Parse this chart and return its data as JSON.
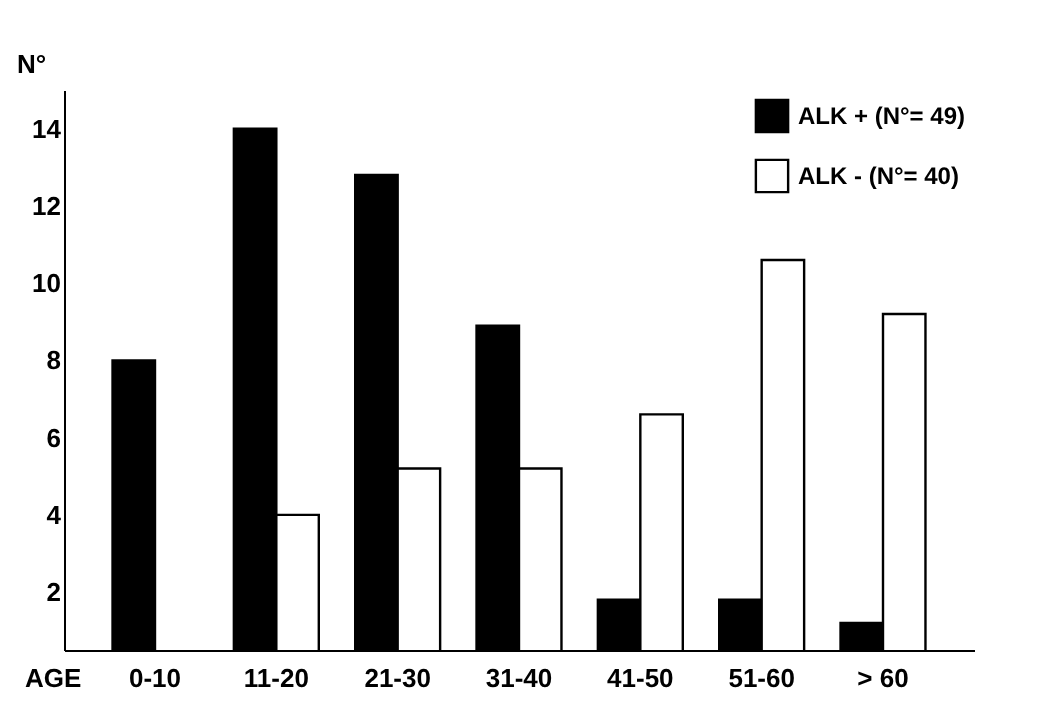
{
  "chart_data": {
    "type": "bar",
    "xlabel": "AGE",
    "ylabel": "N°",
    "categories": [
      "0-10",
      "11-20",
      "21-30",
      "31-40",
      "41-50",
      "51-60",
      "> 60"
    ],
    "series": [
      {
        "name": "ALK + (N°= 49)",
        "color": "#000000",
        "values": [
          8,
          14,
          12.8,
          8.9,
          1.8,
          1.8,
          1.2
        ]
      },
      {
        "name": "ALK - (N°= 40)",
        "color": "#ffffff",
        "values": [
          null,
          4,
          5.2,
          5.2,
          6.6,
          10.6,
          9.2
        ]
      }
    ],
    "ylim": [
      0.5,
      15
    ],
    "yticks": [
      2,
      4,
      6,
      8,
      10,
      12,
      14
    ],
    "legend": "top right"
  }
}
